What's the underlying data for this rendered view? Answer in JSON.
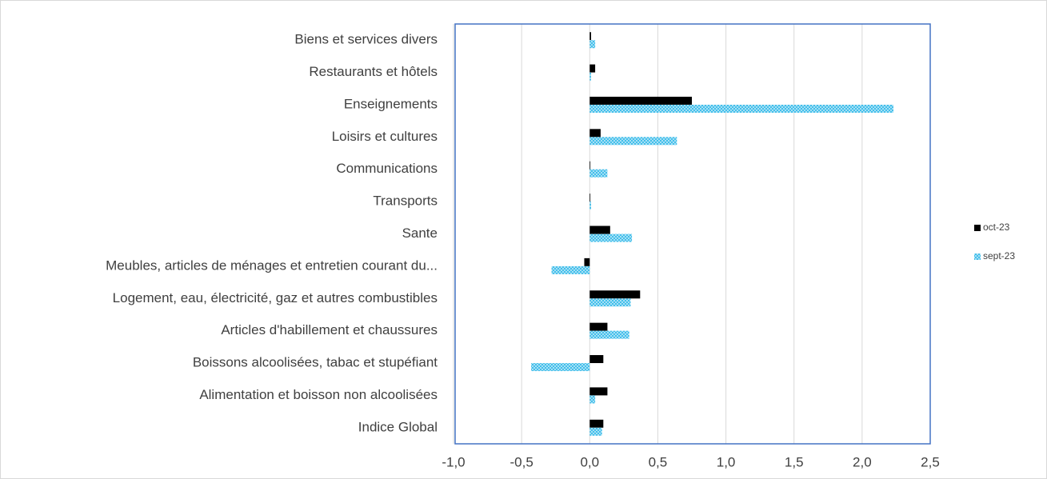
{
  "chart_data": {
    "type": "hbar",
    "categories": [
      "Indice Global",
      "Alimentation et boisson non alcoolisées",
      "Boissons alcoolisées, tabac et stupéfiant",
      "Articles d'habillement et chaussures",
      "Logement, eau, électricité, gaz et autres combustibles",
      "Meubles, articles de ménages et entretien courant du...",
      "Sante",
      "Transports",
      "Communications",
      "Loisirs et cultures",
      "Enseignements",
      "Restaurants et hôtels",
      "Biens et services divers"
    ],
    "series": [
      {
        "name": "oct-23",
        "color": "#000000",
        "values": [
          0.1,
          0.13,
          0.1,
          0.13,
          0.37,
          -0.04,
          0.15,
          0.0,
          0.0,
          0.08,
          0.75,
          0.04,
          0.01
        ]
      },
      {
        "name": "sept-23",
        "color": "#29b6e8",
        "values": [
          0.09,
          0.04,
          -0.43,
          0.29,
          0.3,
          -0.28,
          0.31,
          0.01,
          0.13,
          0.64,
          2.23,
          0.01,
          0.04
        ]
      }
    ],
    "xlim": [
      -1.0,
      2.5
    ],
    "xticks": [
      {
        "value": -1.0,
        "label": "-1,0"
      },
      {
        "value": -0.5,
        "label": "-0,5"
      },
      {
        "value": 0.0,
        "label": "0,0"
      },
      {
        "value": 0.5,
        "label": "0,5"
      },
      {
        "value": 1.0,
        "label": "1,0"
      },
      {
        "value": 1.5,
        "label": "1,5"
      },
      {
        "value": 2.0,
        "label": "2,0"
      },
      {
        "value": 2.5,
        "label": "2,5"
      }
    ],
    "grid": true,
    "legend": "right"
  }
}
